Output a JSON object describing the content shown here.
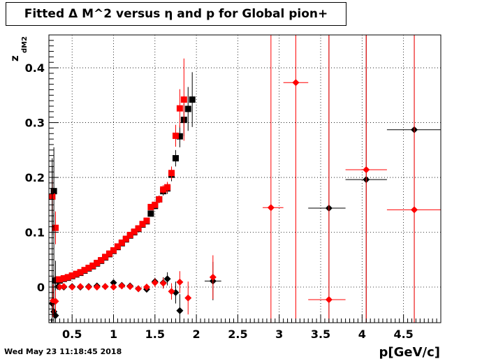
{
  "title": "Fitted Δ M^2 versus η and p for Global pion+",
  "timestamp": "Wed May 23 11:18:45 2018",
  "chart_data": {
    "type": "scatter",
    "title": "Fitted Δ M^2 versus η and p for Global pion+",
    "xlabel": "p[GeV/c]",
    "ylabel": "z",
    "ylabel_sub": "dM2",
    "xlim": [
      0.22,
      4.95
    ],
    "ylim": [
      -0.065,
      0.46
    ],
    "grid": true,
    "x_ticks": [
      0.5,
      1,
      1.5,
      2,
      2.5,
      3,
      3.5,
      4,
      4.5
    ],
    "x_tick_labels": [
      "0.5",
      "1",
      "1.5",
      "2",
      "2.5",
      "3",
      "3.5",
      "4",
      "4.5"
    ],
    "y_ticks": [
      0,
      0.1,
      0.2,
      0.3,
      0.4
    ],
    "y_tick_labels": [
      "0",
      "0.1",
      "0.2",
      "0.3",
      "0.4"
    ],
    "colors": {
      "black": "#000000",
      "red": "#ff0000"
    },
    "series": [
      {
        "color": "black",
        "marker": "square",
        "points": [
          [
            0.26,
            0.165,
            0.07
          ],
          [
            0.28,
            0.175,
            0.08
          ],
          [
            0.3,
            0.012,
            0.004
          ],
          [
            0.35,
            0.012,
            0.004
          ],
          [
            0.4,
            0.015,
            0.004
          ],
          [
            0.45,
            0.017,
            0.004
          ],
          [
            0.5,
            0.02,
            0.004
          ],
          [
            0.55,
            0.023,
            0.004
          ],
          [
            0.6,
            0.026,
            0.004
          ],
          [
            0.65,
            0.03,
            0.004
          ],
          [
            0.7,
            0.034,
            0.004
          ],
          [
            0.75,
            0.038,
            0.004
          ],
          [
            0.8,
            0.043,
            0.004
          ],
          [
            0.85,
            0.048,
            0.004
          ],
          [
            0.9,
            0.054,
            0.004
          ],
          [
            0.95,
            0.06,
            0.004
          ],
          [
            1.0,
            0.066,
            0.004
          ],
          [
            1.05,
            0.073,
            0.004
          ],
          [
            1.1,
            0.08,
            0.004
          ],
          [
            1.15,
            0.087,
            0.004
          ],
          [
            1.2,
            0.094,
            0.004
          ],
          [
            1.25,
            0.1,
            0.004
          ],
          [
            1.3,
            0.106,
            0.004
          ],
          [
            1.35,
            0.114,
            0.004
          ],
          [
            1.4,
            0.12,
            0.004
          ],
          [
            1.45,
            0.134,
            0.005
          ],
          [
            1.5,
            0.148,
            0.006
          ],
          [
            1.55,
            0.16,
            0.007
          ],
          [
            1.6,
            0.175,
            0.008
          ],
          [
            1.65,
            0.18,
            0.01
          ],
          [
            1.7,
            0.205,
            0.012
          ],
          [
            1.75,
            0.235,
            0.015
          ],
          [
            1.8,
            0.275,
            0.02
          ],
          [
            1.85,
            0.305,
            0.03
          ],
          [
            1.9,
            0.325,
            0.04
          ],
          [
            1.95,
            0.342,
            0.05
          ]
        ]
      },
      {
        "color": "red",
        "marker": "square",
        "points": [
          [
            0.26,
            0.165,
            0.03
          ],
          [
            0.3,
            0.108,
            0.03
          ],
          [
            0.33,
            0.014,
            0.003
          ],
          [
            0.35,
            0.014,
            0.003
          ],
          [
            0.4,
            0.016,
            0.003
          ],
          [
            0.45,
            0.018,
            0.003
          ],
          [
            0.5,
            0.021,
            0.003
          ],
          [
            0.55,
            0.024,
            0.003
          ],
          [
            0.6,
            0.027,
            0.003
          ],
          [
            0.65,
            0.031,
            0.003
          ],
          [
            0.7,
            0.035,
            0.003
          ],
          [
            0.75,
            0.039,
            0.003
          ],
          [
            0.8,
            0.044,
            0.003
          ],
          [
            0.85,
            0.049,
            0.003
          ],
          [
            0.9,
            0.055,
            0.003
          ],
          [
            0.95,
            0.061,
            0.003
          ],
          [
            1.0,
            0.067,
            0.003
          ],
          [
            1.05,
            0.074,
            0.003
          ],
          [
            1.1,
            0.081,
            0.003
          ],
          [
            1.15,
            0.088,
            0.003
          ],
          [
            1.2,
            0.095,
            0.003
          ],
          [
            1.25,
            0.101,
            0.004
          ],
          [
            1.3,
            0.107,
            0.004
          ],
          [
            1.35,
            0.115,
            0.004
          ],
          [
            1.4,
            0.121,
            0.004
          ],
          [
            1.45,
            0.146,
            0.005
          ],
          [
            1.5,
            0.15,
            0.006
          ],
          [
            1.55,
            0.16,
            0.007
          ],
          [
            1.6,
            0.178,
            0.008
          ],
          [
            1.65,
            0.182,
            0.01
          ],
          [
            1.7,
            0.208,
            0.012
          ],
          [
            1.75,
            0.276,
            0.02
          ],
          [
            1.8,
            0.326,
            0.035
          ],
          [
            1.85,
            0.342,
            0.075
          ]
        ]
      },
      {
        "color": "black",
        "marker": "diamond",
        "points": [
          [
            0.26,
            -0.03,
            0.25
          ],
          [
            0.28,
            -0.045,
            0.18
          ],
          [
            0.3,
            -0.052,
            0.1
          ],
          [
            0.33,
            0.001,
            0.003
          ],
          [
            0.4,
            0.0,
            0.003
          ],
          [
            0.5,
            0.001,
            0.003
          ],
          [
            0.6,
            0.0,
            0.003
          ],
          [
            0.7,
            0.001,
            0.003
          ],
          [
            0.8,
            0.002,
            0.003
          ],
          [
            0.9,
            0.001,
            0.003
          ],
          [
            1.0,
            0.008,
            0.004
          ],
          [
            1.1,
            0.003,
            0.004
          ],
          [
            1.2,
            0.002,
            0.004
          ],
          [
            1.3,
            -0.003,
            0.004
          ],
          [
            1.4,
            -0.004,
            0.005
          ],
          [
            1.5,
            0.01,
            0.007
          ],
          [
            1.6,
            0.008,
            0.01
          ],
          [
            1.65,
            0.015,
            0.012
          ],
          [
            1.75,
            -0.01,
            0.02
          ],
          [
            1.8,
            -0.043,
            0.03
          ],
          [
            2.2,
            0.011,
            0.035
          ],
          [
            3.6,
            0.144,
            0.8
          ],
          [
            4.05,
            0.196,
            0.8
          ],
          [
            4.63,
            0.287,
            0.8
          ]
        ]
      },
      {
        "color": "red",
        "marker": "diamond",
        "points": [
          [
            0.27,
            -0.025,
            0.03
          ],
          [
            0.3,
            -0.026,
            0.02
          ],
          [
            0.35,
            0.0,
            0.003
          ],
          [
            0.4,
            0.001,
            0.003
          ],
          [
            0.5,
            0.0,
            0.003
          ],
          [
            0.6,
            0.001,
            0.003
          ],
          [
            0.7,
            0.0,
            0.003
          ],
          [
            0.8,
            0.0,
            0.003
          ],
          [
            0.9,
            0.001,
            0.003
          ],
          [
            1.0,
            0.0,
            0.003
          ],
          [
            1.1,
            0.002,
            0.004
          ],
          [
            1.2,
            0.001,
            0.004
          ],
          [
            1.3,
            -0.003,
            0.005
          ],
          [
            1.4,
            0.0,
            0.006
          ],
          [
            1.5,
            0.008,
            0.008
          ],
          [
            1.6,
            0.007,
            0.01
          ],
          [
            1.7,
            -0.008,
            0.015
          ],
          [
            1.8,
            0.009,
            0.02
          ],
          [
            1.9,
            -0.02,
            0.03
          ],
          [
            2.2,
            0.018,
            0.04
          ],
          [
            2.9,
            0.145,
            0.8
          ],
          [
            3.2,
            0.373,
            0.8
          ],
          [
            3.6,
            -0.023,
            0.8
          ],
          [
            4.05,
            0.214,
            0.8
          ],
          [
            4.63,
            0.141,
            0.8
          ]
        ]
      }
    ],
    "horizontal_error_bars": [
      {
        "color": "black",
        "x_from": 3.35,
        "x_to": 3.8,
        "y": 0.144
      },
      {
        "color": "black",
        "x_from": 3.8,
        "x_to": 4.3,
        "y": 0.196
      },
      {
        "color": "black",
        "x_from": 4.3,
        "x_to": 4.95,
        "y": 0.287
      },
      {
        "color": "red",
        "x_from": 2.8,
        "x_to": 3.05,
        "y": 0.145
      },
      {
        "color": "red",
        "x_from": 3.05,
        "x_to": 3.35,
        "y": 0.373
      },
      {
        "color": "red",
        "x_from": 3.35,
        "x_to": 3.8,
        "y": -0.023
      },
      {
        "color": "red",
        "x_from": 3.8,
        "x_to": 4.3,
        "y": 0.214
      },
      {
        "color": "red",
        "x_from": 4.3,
        "x_to": 4.95,
        "y": 0.141
      },
      {
        "color": "black",
        "x_from": 2.1,
        "x_to": 2.3,
        "y": 0.011
      }
    ]
  }
}
